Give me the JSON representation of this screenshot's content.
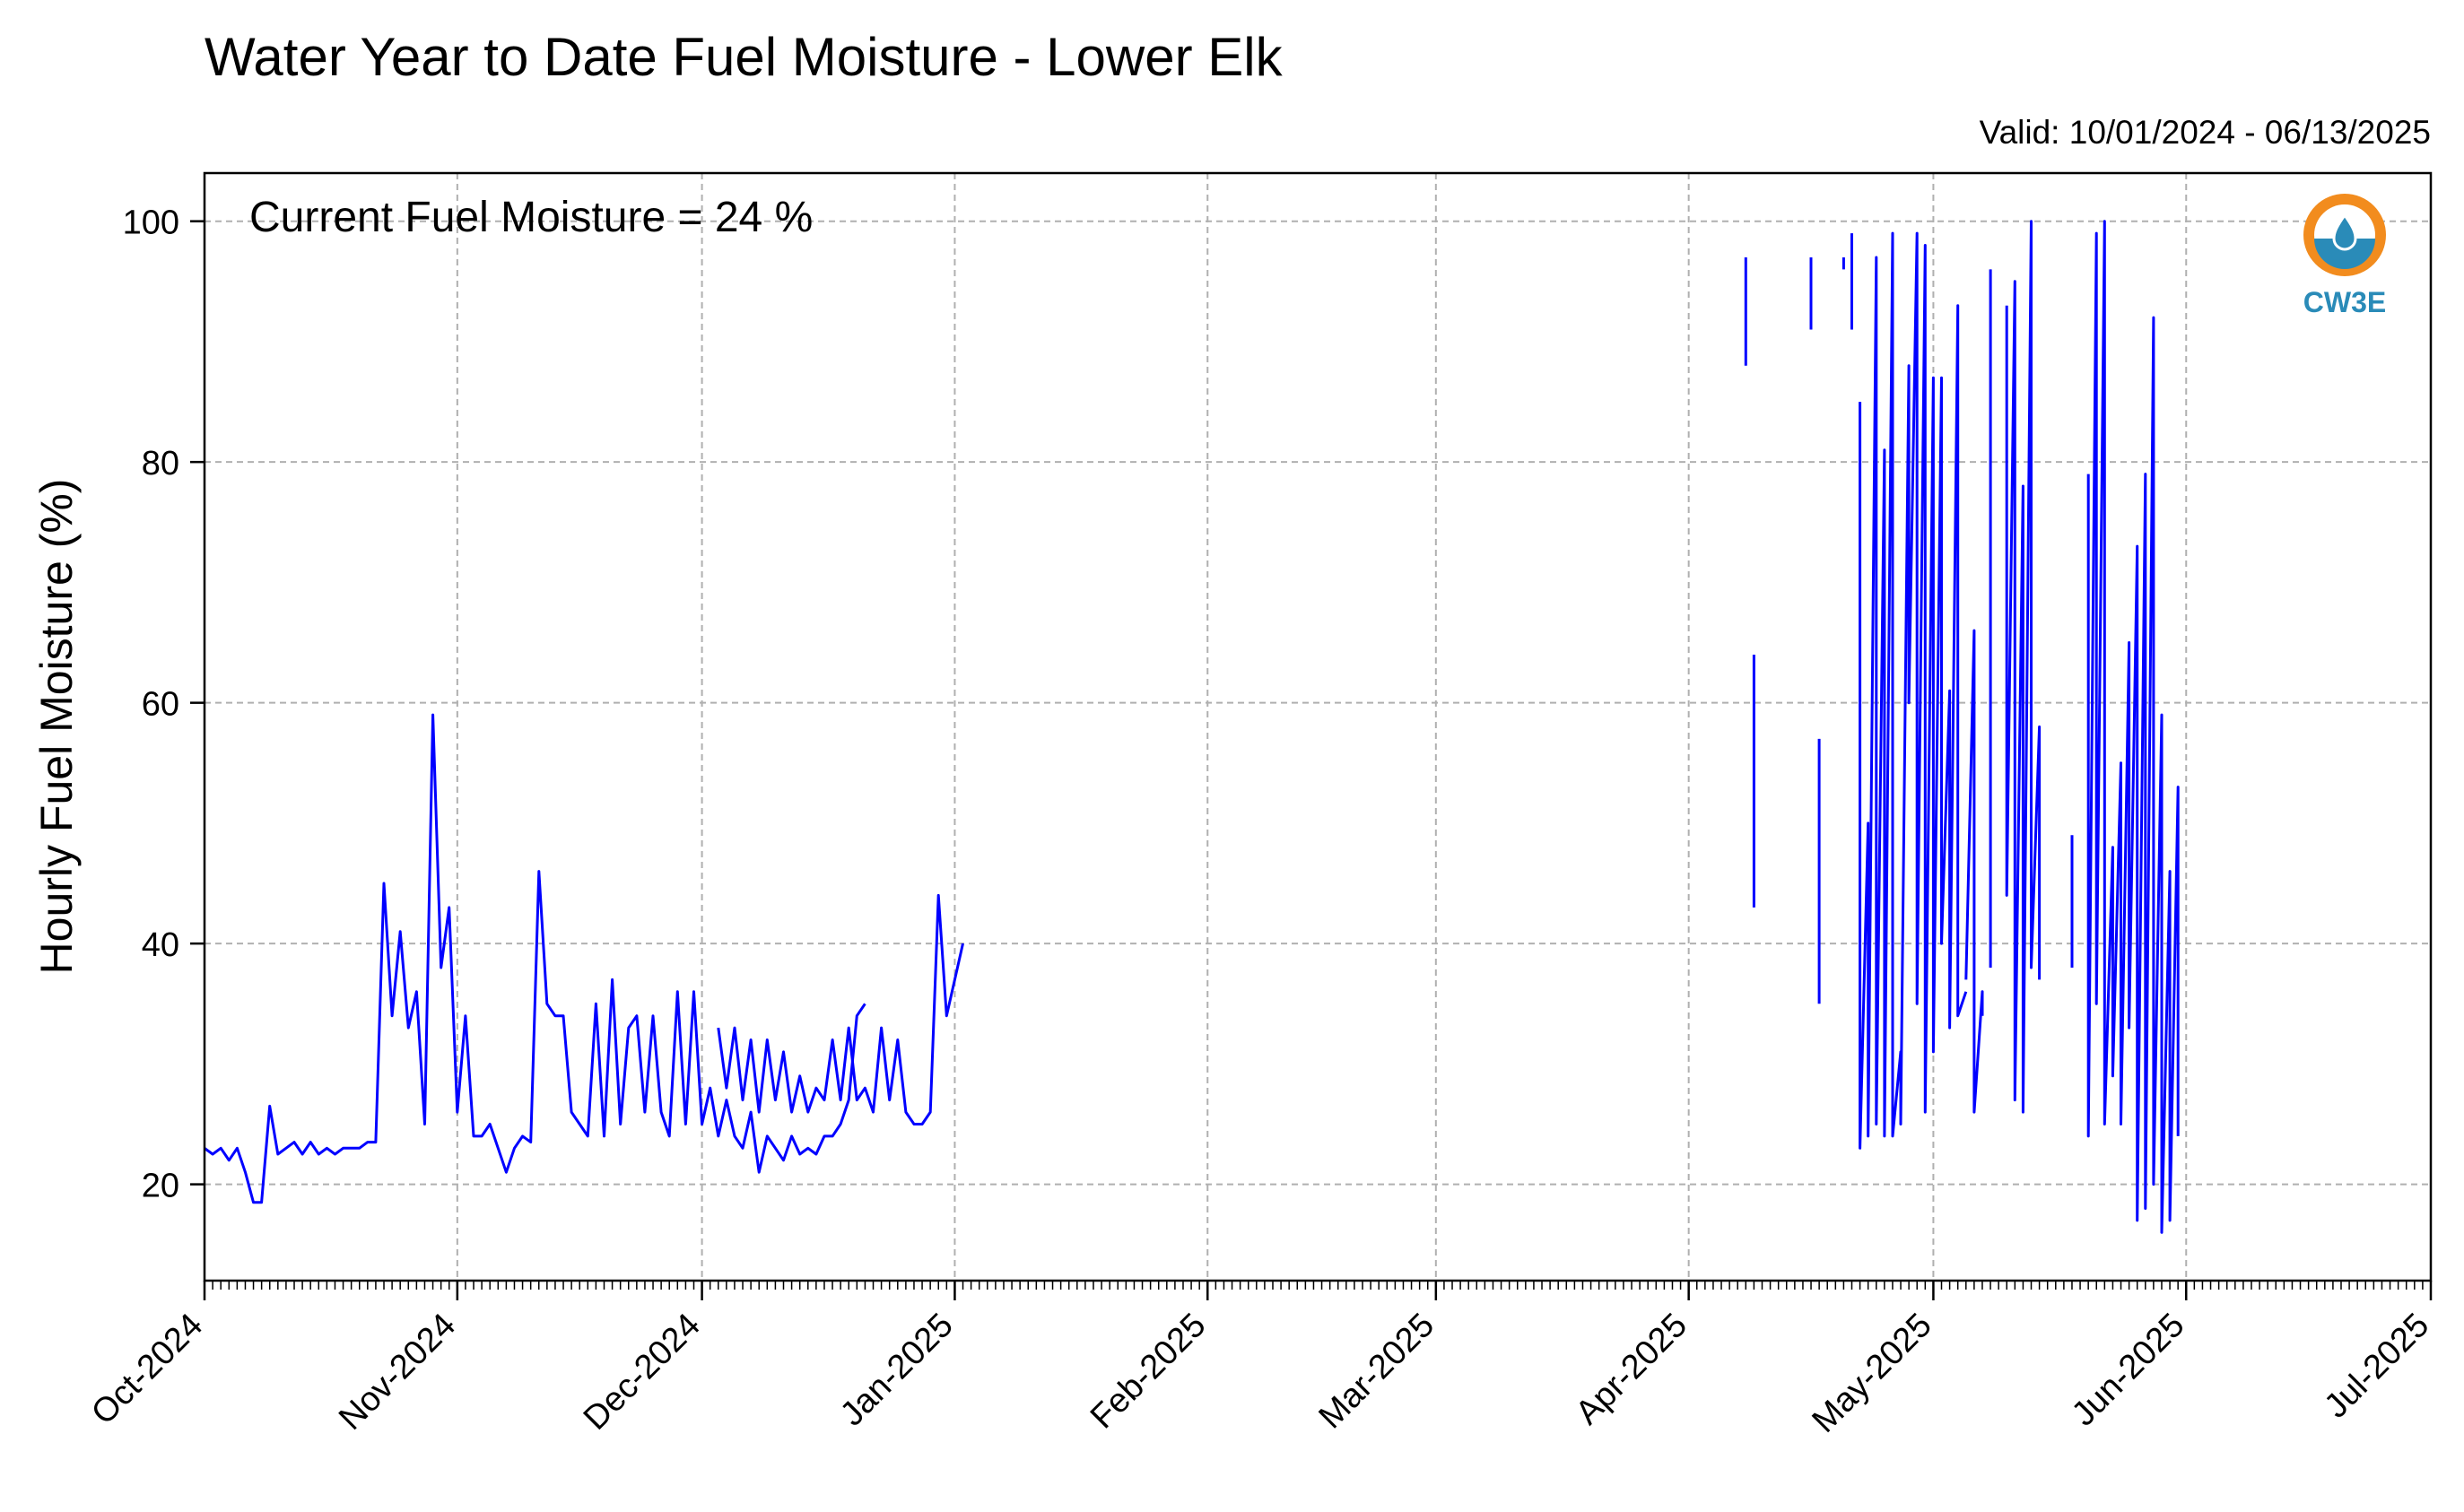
{
  "chart_data": {
    "type": "line",
    "title": "Water Year to Date Fuel Moisture - Lower Elk",
    "subtitle": "Valid: 10/01/2024 - 06/13/2025",
    "annotation": "Current Fuel Moisture = 24 %",
    "xlabel": "",
    "ylabel": "Hourly Fuel Moisture (%)",
    "xlim": [
      "2024-10-01",
      "2025-07-01"
    ],
    "ylim": [
      12,
      104
    ],
    "x_ticks": [
      "2024-10-01",
      "2024-11-01",
      "2024-12-01",
      "2025-01-01",
      "2025-02-01",
      "2025-03-01",
      "2025-04-01",
      "2025-05-01",
      "2025-06-01",
      "2025-07-01"
    ],
    "x_tick_labels": [
      "Oct-2024",
      "Nov-2024",
      "Dec-2024",
      "Jan-2025",
      "Feb-2025",
      "Mar-2025",
      "Apr-2025",
      "May-2025",
      "Jun-2025",
      "Jul-2025"
    ],
    "y_ticks": [
      20,
      40,
      60,
      80,
      100
    ],
    "grid": true,
    "line_color": "#0000ff",
    "logo_text": "CW3E",
    "logo_colors": {
      "ring": "#f28c1e",
      "wave": "#2a8bb8"
    },
    "series": [
      {
        "segments": [
          [
            [
              "2024-10-01",
              23
            ],
            [
              "2024-10-02",
              22.5
            ],
            [
              "2024-10-03",
              23
            ],
            [
              "2024-10-04",
              22
            ],
            [
              "2024-10-05",
              23
            ],
            [
              "2024-10-06",
              21
            ],
            [
              "2024-10-07",
              18.5
            ],
            [
              "2024-10-08",
              18.5
            ],
            [
              "2024-10-09",
              26.5
            ],
            [
              "2024-10-10",
              22.5
            ],
            [
              "2024-10-11",
              23
            ],
            [
              "2024-10-12",
              23.5
            ],
            [
              "2024-10-13",
              22.5
            ],
            [
              "2024-10-14",
              23.5
            ],
            [
              "2024-10-15",
              22.5
            ],
            [
              "2024-10-16",
              23
            ],
            [
              "2024-10-17",
              22.5
            ],
            [
              "2024-10-18",
              23
            ],
            [
              "2024-10-19",
              23
            ],
            [
              "2024-10-20",
              23
            ],
            [
              "2024-10-21",
              23.5
            ],
            [
              "2024-10-22",
              23.5
            ],
            [
              "2024-10-23",
              45
            ],
            [
              "2024-10-24",
              34
            ],
            [
              "2024-10-25",
              41
            ],
            [
              "2024-10-26",
              33
            ],
            [
              "2024-10-27",
              36
            ],
            [
              "2024-10-28",
              25
            ],
            [
              "2024-10-29",
              59
            ],
            [
              "2024-10-30",
              38
            ],
            [
              "2024-10-31",
              43
            ],
            [
              "2024-11-01",
              26
            ],
            [
              "2024-11-02",
              34
            ],
            [
              "2024-11-03",
              24
            ],
            [
              "2024-11-04",
              24
            ],
            [
              "2024-11-05",
              25
            ],
            [
              "2024-11-06",
              23
            ],
            [
              "2024-11-07",
              21
            ],
            [
              "2024-11-08",
              23
            ],
            [
              "2024-11-09",
              24
            ],
            [
              "2024-11-10",
              23.5
            ],
            [
              "2024-11-11",
              46
            ],
            [
              "2024-11-12",
              35
            ],
            [
              "2024-11-13",
              34
            ],
            [
              "2024-11-14",
              34
            ],
            [
              "2024-11-15",
              26
            ],
            [
              "2024-11-16",
              25
            ],
            [
              "2024-11-17",
              24
            ],
            [
              "2024-11-18",
              35
            ],
            [
              "2024-11-19",
              24
            ],
            [
              "2024-11-20",
              37
            ],
            [
              "2024-11-21",
              25
            ],
            [
              "2024-11-22",
              33
            ],
            [
              "2024-11-23",
              34
            ],
            [
              "2024-11-24",
              26
            ],
            [
              "2024-11-25",
              34
            ],
            [
              "2024-11-26",
              26
            ],
            [
              "2024-11-27",
              24
            ],
            [
              "2024-11-28",
              36
            ],
            [
              "2024-11-29",
              25
            ],
            [
              "2024-11-30",
              36
            ],
            [
              "2024-12-01",
              25
            ],
            [
              "2024-12-02",
              28
            ],
            [
              "2024-12-03",
              24
            ],
            [
              "2024-12-04",
              27
            ],
            [
              "2024-12-05",
              24
            ],
            [
              "2024-12-06",
              23
            ],
            [
              "2024-12-07",
              26
            ],
            [
              "2024-12-08",
              21
            ],
            [
              "2024-12-09",
              24
            ],
            [
              "2024-12-10",
              23
            ],
            [
              "2024-12-11",
              22
            ],
            [
              "2024-12-12",
              24
            ],
            [
              "2024-12-13",
              22.5
            ],
            [
              "2024-12-14",
              23
            ],
            [
              "2024-12-15",
              22.5
            ],
            [
              "2024-12-16",
              24
            ],
            [
              "2024-12-17",
              24
            ],
            [
              "2024-12-18",
              25
            ],
            [
              "2024-12-19",
              27
            ],
            [
              "2024-12-20",
              34
            ],
            [
              "2024-12-21",
              35
            ]
          ],
          [
            [
              "2024-12-03",
              33
            ],
            [
              "2024-12-04",
              28
            ],
            [
              "2024-12-05",
              33
            ],
            [
              "2024-12-06",
              27
            ],
            [
              "2024-12-07",
              32
            ],
            [
              "2024-12-08",
              26
            ],
            [
              "2024-12-09",
              32
            ],
            [
              "2024-12-10",
              27
            ],
            [
              "2024-12-11",
              31
            ],
            [
              "2024-12-12",
              26
            ],
            [
              "2024-12-13",
              29
            ],
            [
              "2024-12-14",
              26
            ],
            [
              "2024-12-15",
              28
            ],
            [
              "2024-12-16",
              27
            ],
            [
              "2024-12-17",
              32
            ],
            [
              "2024-12-18",
              27
            ],
            [
              "2024-12-19",
              33
            ],
            [
              "2024-12-20",
              27
            ],
            [
              "2024-12-21",
              28
            ],
            [
              "2024-12-22",
              26
            ],
            [
              "2024-12-23",
              33
            ],
            [
              "2024-12-24",
              27
            ],
            [
              "2024-12-25",
              32
            ],
            [
              "2024-12-26",
              26
            ],
            [
              "2024-12-27",
              25
            ],
            [
              "2024-12-28",
              25
            ],
            [
              "2024-12-29",
              26
            ],
            [
              "2024-12-30",
              44
            ],
            [
              "2024-12-31",
              34
            ],
            [
              "2025-01-01",
              37
            ],
            [
              "2025-01-02",
              40
            ]
          ],
          [
            [
              "2025-04-08",
              97
            ],
            [
              "2025-04-08",
              88
            ]
          ],
          [
            [
              "2025-04-09",
              64
            ],
            [
              "2025-04-09",
              43
            ]
          ],
          [
            [
              "2025-04-16",
              97
            ],
            [
              "2025-04-16",
              91
            ]
          ],
          [
            [
              "2025-04-17",
              57
            ],
            [
              "2025-04-17",
              35
            ]
          ],
          [
            [
              "2025-04-20",
              97
            ],
            [
              "2025-04-20",
              96
            ]
          ],
          [
            [
              "2025-04-21",
              99
            ],
            [
              "2025-04-21",
              91
            ]
          ],
          [
            [
              "2025-04-22",
              85
            ],
            [
              "2025-04-22",
              23
            ],
            [
              "2025-04-23",
              50
            ],
            [
              "2025-04-23",
              24
            ],
            [
              "2025-04-24",
              97
            ],
            [
              "2025-04-24",
              25
            ],
            [
              "2025-04-25",
              81
            ],
            [
              "2025-04-25",
              24
            ],
            [
              "2025-04-26",
              99
            ],
            [
              "2025-04-26",
              24
            ],
            [
              "2025-04-27",
              31
            ],
            [
              "2025-04-27",
              25
            ],
            [
              "2025-04-28",
              88
            ],
            [
              "2025-04-28",
              60
            ],
            [
              "2025-04-29",
              99
            ],
            [
              "2025-04-29",
              35
            ],
            [
              "2025-04-30",
              98
            ],
            [
              "2025-04-30",
              26
            ],
            [
              "2025-05-01",
              87
            ],
            [
              "2025-05-01",
              31
            ],
            [
              "2025-05-02",
              87
            ],
            [
              "2025-05-02",
              40
            ],
            [
              "2025-05-03",
              61
            ],
            [
              "2025-05-03",
              33
            ],
            [
              "2025-05-04",
              93
            ],
            [
              "2025-05-04",
              34
            ],
            [
              "2025-05-05",
              36
            ]
          ],
          [
            [
              "2025-05-05",
              37
            ],
            [
              "2025-05-06",
              66
            ],
            [
              "2025-05-06",
              26
            ],
            [
              "2025-05-07",
              36
            ],
            [
              "2025-05-07",
              34
            ]
          ],
          [
            [
              "2025-05-08",
              96
            ],
            [
              "2025-05-08",
              38
            ]
          ],
          [
            [
              "2025-05-10",
              93
            ],
            [
              "2025-05-10",
              44
            ],
            [
              "2025-05-11",
              95
            ],
            [
              "2025-05-11",
              27
            ],
            [
              "2025-05-12",
              78
            ],
            [
              "2025-05-12",
              26
            ],
            [
              "2025-05-13",
              100
            ],
            [
              "2025-05-13",
              38
            ],
            [
              "2025-05-14",
              58
            ],
            [
              "2025-05-14",
              37
            ]
          ],
          [
            [
              "2025-05-18",
              49
            ],
            [
              "2025-05-18",
              38
            ]
          ],
          [
            [
              "2025-05-20",
              79
            ],
            [
              "2025-05-20",
              24
            ],
            [
              "2025-05-21",
              99
            ],
            [
              "2025-05-21",
              35
            ],
            [
              "2025-05-22",
              100
            ],
            [
              "2025-05-22",
              25
            ],
            [
              "2025-05-23",
              48
            ],
            [
              "2025-05-23",
              29
            ],
            [
              "2025-05-24",
              55
            ],
            [
              "2025-05-24",
              25
            ],
            [
              "2025-05-25",
              65
            ],
            [
              "2025-05-25",
              33
            ],
            [
              "2025-05-26",
              73
            ],
            [
              "2025-05-26",
              17
            ],
            [
              "2025-05-27",
              79
            ],
            [
              "2025-05-27",
              18
            ],
            [
              "2025-05-28",
              92
            ],
            [
              "2025-05-28",
              20
            ],
            [
              "2025-05-29",
              59
            ],
            [
              "2025-05-29",
              16
            ],
            [
              "2025-05-30",
              46
            ],
            [
              "2025-05-30",
              17
            ],
            [
              "2025-05-31",
              53
            ],
            [
              "2025-05-31",
              24
            ]
          ]
        ]
      }
    ]
  }
}
